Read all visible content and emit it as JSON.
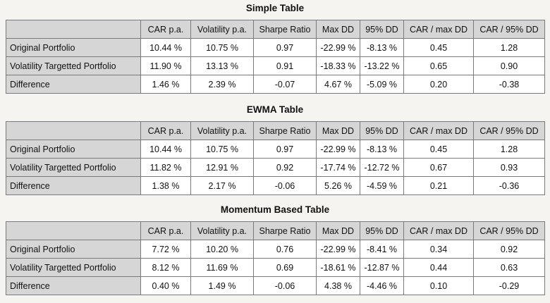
{
  "columns": [
    "CAR p.a.",
    "Volatility p.a.",
    "Sharpe Ratio",
    "Max DD",
    "95% DD",
    "CAR / max DD",
    "CAR / 95% DD"
  ],
  "tables": [
    {
      "title": "Simple Table",
      "rows": [
        {
          "label": "Original Portfolio",
          "values": [
            "10.44 %",
            "10.75 %",
            "0.97",
            "-22.99 %",
            "-8.13 %",
            "0.45",
            "1.28"
          ]
        },
        {
          "label": "Volatility Targetted Portfolio",
          "values": [
            "11.90 %",
            "13.13 %",
            "0.91",
            "-18.33 %",
            "-13.22 %",
            "0.65",
            "0.90"
          ]
        },
        {
          "label": "Difference",
          "values": [
            "1.46 %",
            "2.39 %",
            "-0.07",
            "4.67 %",
            "-5.09 %",
            "0.20",
            "-0.38"
          ]
        }
      ]
    },
    {
      "title": "EWMA Table",
      "rows": [
        {
          "label": "Original Portfolio",
          "values": [
            "10.44 %",
            "10.75 %",
            "0.97",
            "-22.99 %",
            "-8.13 %",
            "0.45",
            "1.28"
          ]
        },
        {
          "label": "Volatility Targetted Portfolio",
          "values": [
            "11.82 %",
            "12.91 %",
            "0.92",
            "-17.74 %",
            "-12.72 %",
            "0.67",
            "0.93"
          ]
        },
        {
          "label": "Difference",
          "values": [
            "1.38 %",
            "2.17 %",
            "-0.06",
            "5.26 %",
            "-4.59 %",
            "0.21",
            "-0.36"
          ]
        }
      ]
    },
    {
      "title": "Momentum Based Table",
      "rows": [
        {
          "label": "Original Portfolio",
          "values": [
            "7.72 %",
            "10.20 %",
            "0.76",
            "-22.99 %",
            "-8.41 %",
            "0.34",
            "0.92"
          ]
        },
        {
          "label": "Volatility Targetted Portfolio",
          "values": [
            "8.12 %",
            "11.69 %",
            "0.69",
            "-18.61 %",
            "-12.87 %",
            "0.44",
            "0.63"
          ]
        },
        {
          "label": "Difference",
          "values": [
            "0.40 %",
            "1.49 %",
            "-0.06",
            "4.38 %",
            "-4.46 %",
            "0.10",
            "-0.29"
          ]
        }
      ]
    }
  ]
}
